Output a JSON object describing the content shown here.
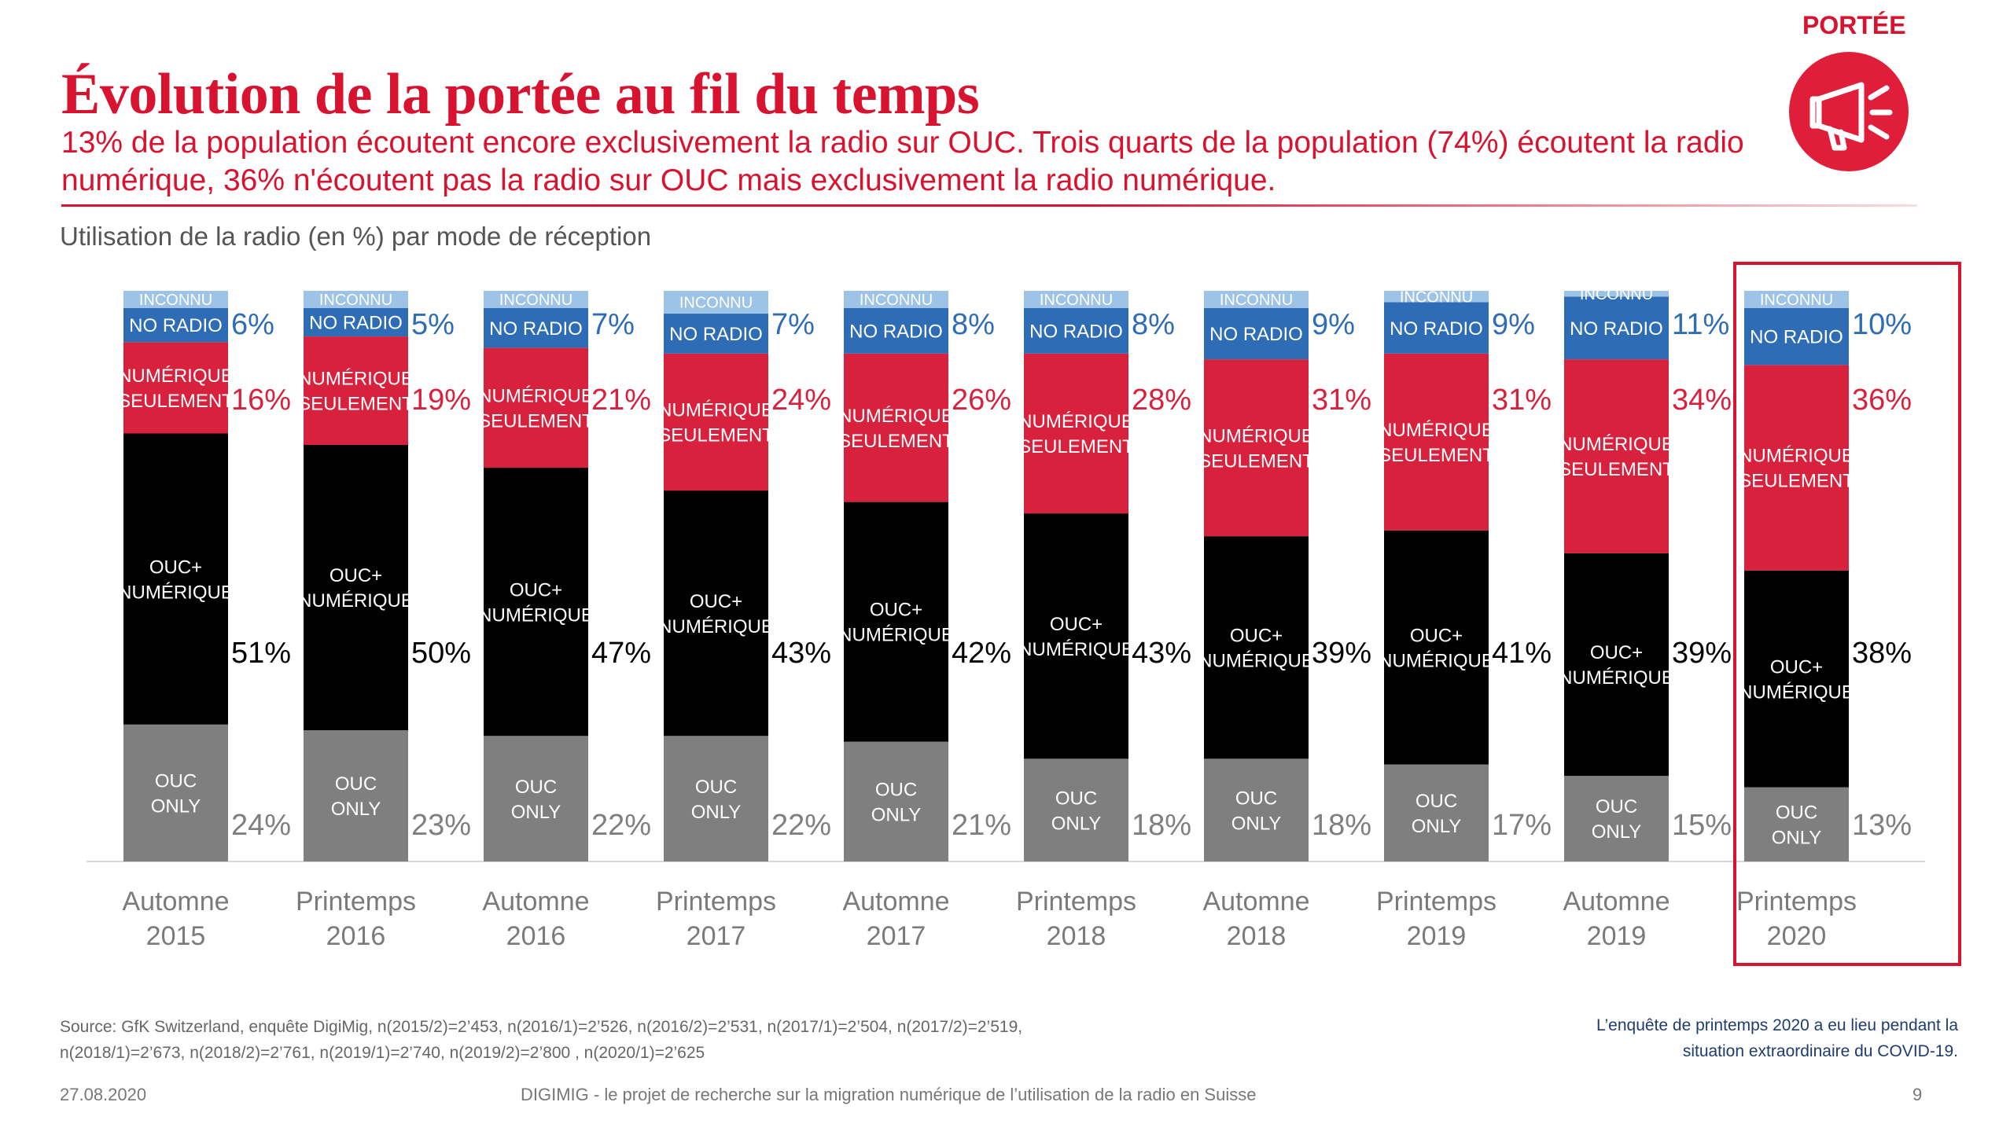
{
  "header": {
    "title": "Évolution de la portée au fil du temps",
    "subtitle": "13% de la population écoutent encore exclusivement la radio sur OUC. Trois quarts de la population (74%) écoutent la radio numérique, 36% n'écoutent pas la radio sur OUC mais exclusivement la radio numérique.",
    "badge_label": "PORTÉE",
    "badge_icon": "megaphone-icon",
    "accent_color": "#d8132f"
  },
  "chart_data": {
    "type": "bar",
    "stacked": true,
    "title": "Utilisation de la radio (en %) par mode de réception",
    "categories": [
      [
        "Automne",
        "2015"
      ],
      [
        "Printemps",
        "2016"
      ],
      [
        "Automne",
        "2016"
      ],
      [
        "Printemps",
        "2017"
      ],
      [
        "Automne",
        "2017"
      ],
      [
        "Printemps",
        "2018"
      ],
      [
        "Automne",
        "2018"
      ],
      [
        "Printemps",
        "2019"
      ],
      [
        "Automne",
        "2019"
      ],
      [
        "Printemps",
        "2020"
      ]
    ],
    "series": [
      {
        "key": "ouc_only",
        "name": "OUC ONLY",
        "label_lines": [
          "OUC",
          "ONLY"
        ],
        "color": "#7f7f7f",
        "text_color": "#ffffff",
        "value_color": "#7f7f7f",
        "values": [
          24,
          23,
          22,
          22,
          21,
          18,
          18,
          17,
          15,
          13
        ]
      },
      {
        "key": "ouc_numerique",
        "name": "OUC+ NUMÉRIQUE",
        "label_lines": [
          "OUC+",
          "NUMÉRIQUE"
        ],
        "color": "#000000",
        "text_color": "#ffffff",
        "value_color": "#000000",
        "values": [
          51,
          50,
          47,
          43,
          42,
          43,
          39,
          41,
          39,
          38
        ]
      },
      {
        "key": "numerique_seulement",
        "name": "NUMÉRIQUE SEULEMENT",
        "label_lines": [
          "NUMÉRIQUE",
          "SEULEMENT"
        ],
        "color": "#d8213c",
        "text_color": "#ffffff",
        "value_color": "#d8213c",
        "values": [
          16,
          19,
          21,
          24,
          26,
          28,
          31,
          31,
          34,
          36
        ]
      },
      {
        "key": "no_radio",
        "name": "NO RADIO",
        "label_lines": [
          "NO RADIO"
        ],
        "color": "#2e6db5",
        "text_color": "#ffffff",
        "value_color": "#2e6db5",
        "values": [
          6,
          5,
          7,
          7,
          8,
          8,
          9,
          9,
          11,
          10
        ]
      },
      {
        "key": "inconnu",
        "name": "INCONNU",
        "label_lines": [
          "INCONNU"
        ],
        "color": "#9dc3e6",
        "text_color": "#ffffff",
        "value_color": null,
        "values": [
          3,
          3,
          3,
          4,
          3,
          3,
          3,
          2,
          1,
          3
        ]
      }
    ],
    "value_suffix": "%",
    "highlighted_category": "Printemps 2020",
    "highlight_color": "#d8132f",
    "grid": false,
    "legend": "none"
  },
  "footer": {
    "source_lines": [
      "Source: GfK Switzerland, enquête DigiMig, n(2015/2)=2’453, n(2016/1)=2’526, n(2016/2)=2’531, n(2017/1)=2’504, n(2017/2)=2’519,",
      "n(2018/1)=2’673, n(2018/2)=2’761, n(2019/1)=2’740, n(2019/2)=2’800 , n(2020/1)=2’625"
    ],
    "covid_note_lines": [
      "L’enquête de printemps 2020 a eu lieu pendant la",
      "situation extraordinaire du COVID-19."
    ],
    "date": "27.08.2020",
    "project": "DIGIMIG - le projet de recherche sur la migration numérique de l’utilisation de la radio en Suisse",
    "page_number": "9"
  }
}
